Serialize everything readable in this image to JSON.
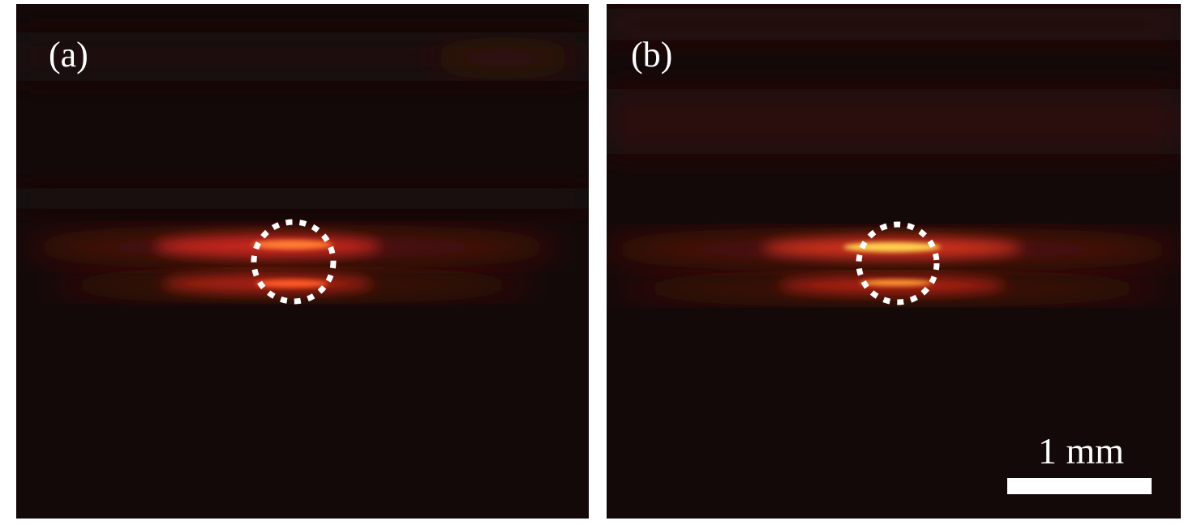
{
  "panels": [
    {
      "label": "(a)"
    },
    {
      "label": "(b)"
    }
  ],
  "scale_bar": {
    "label": "1 mm"
  }
}
